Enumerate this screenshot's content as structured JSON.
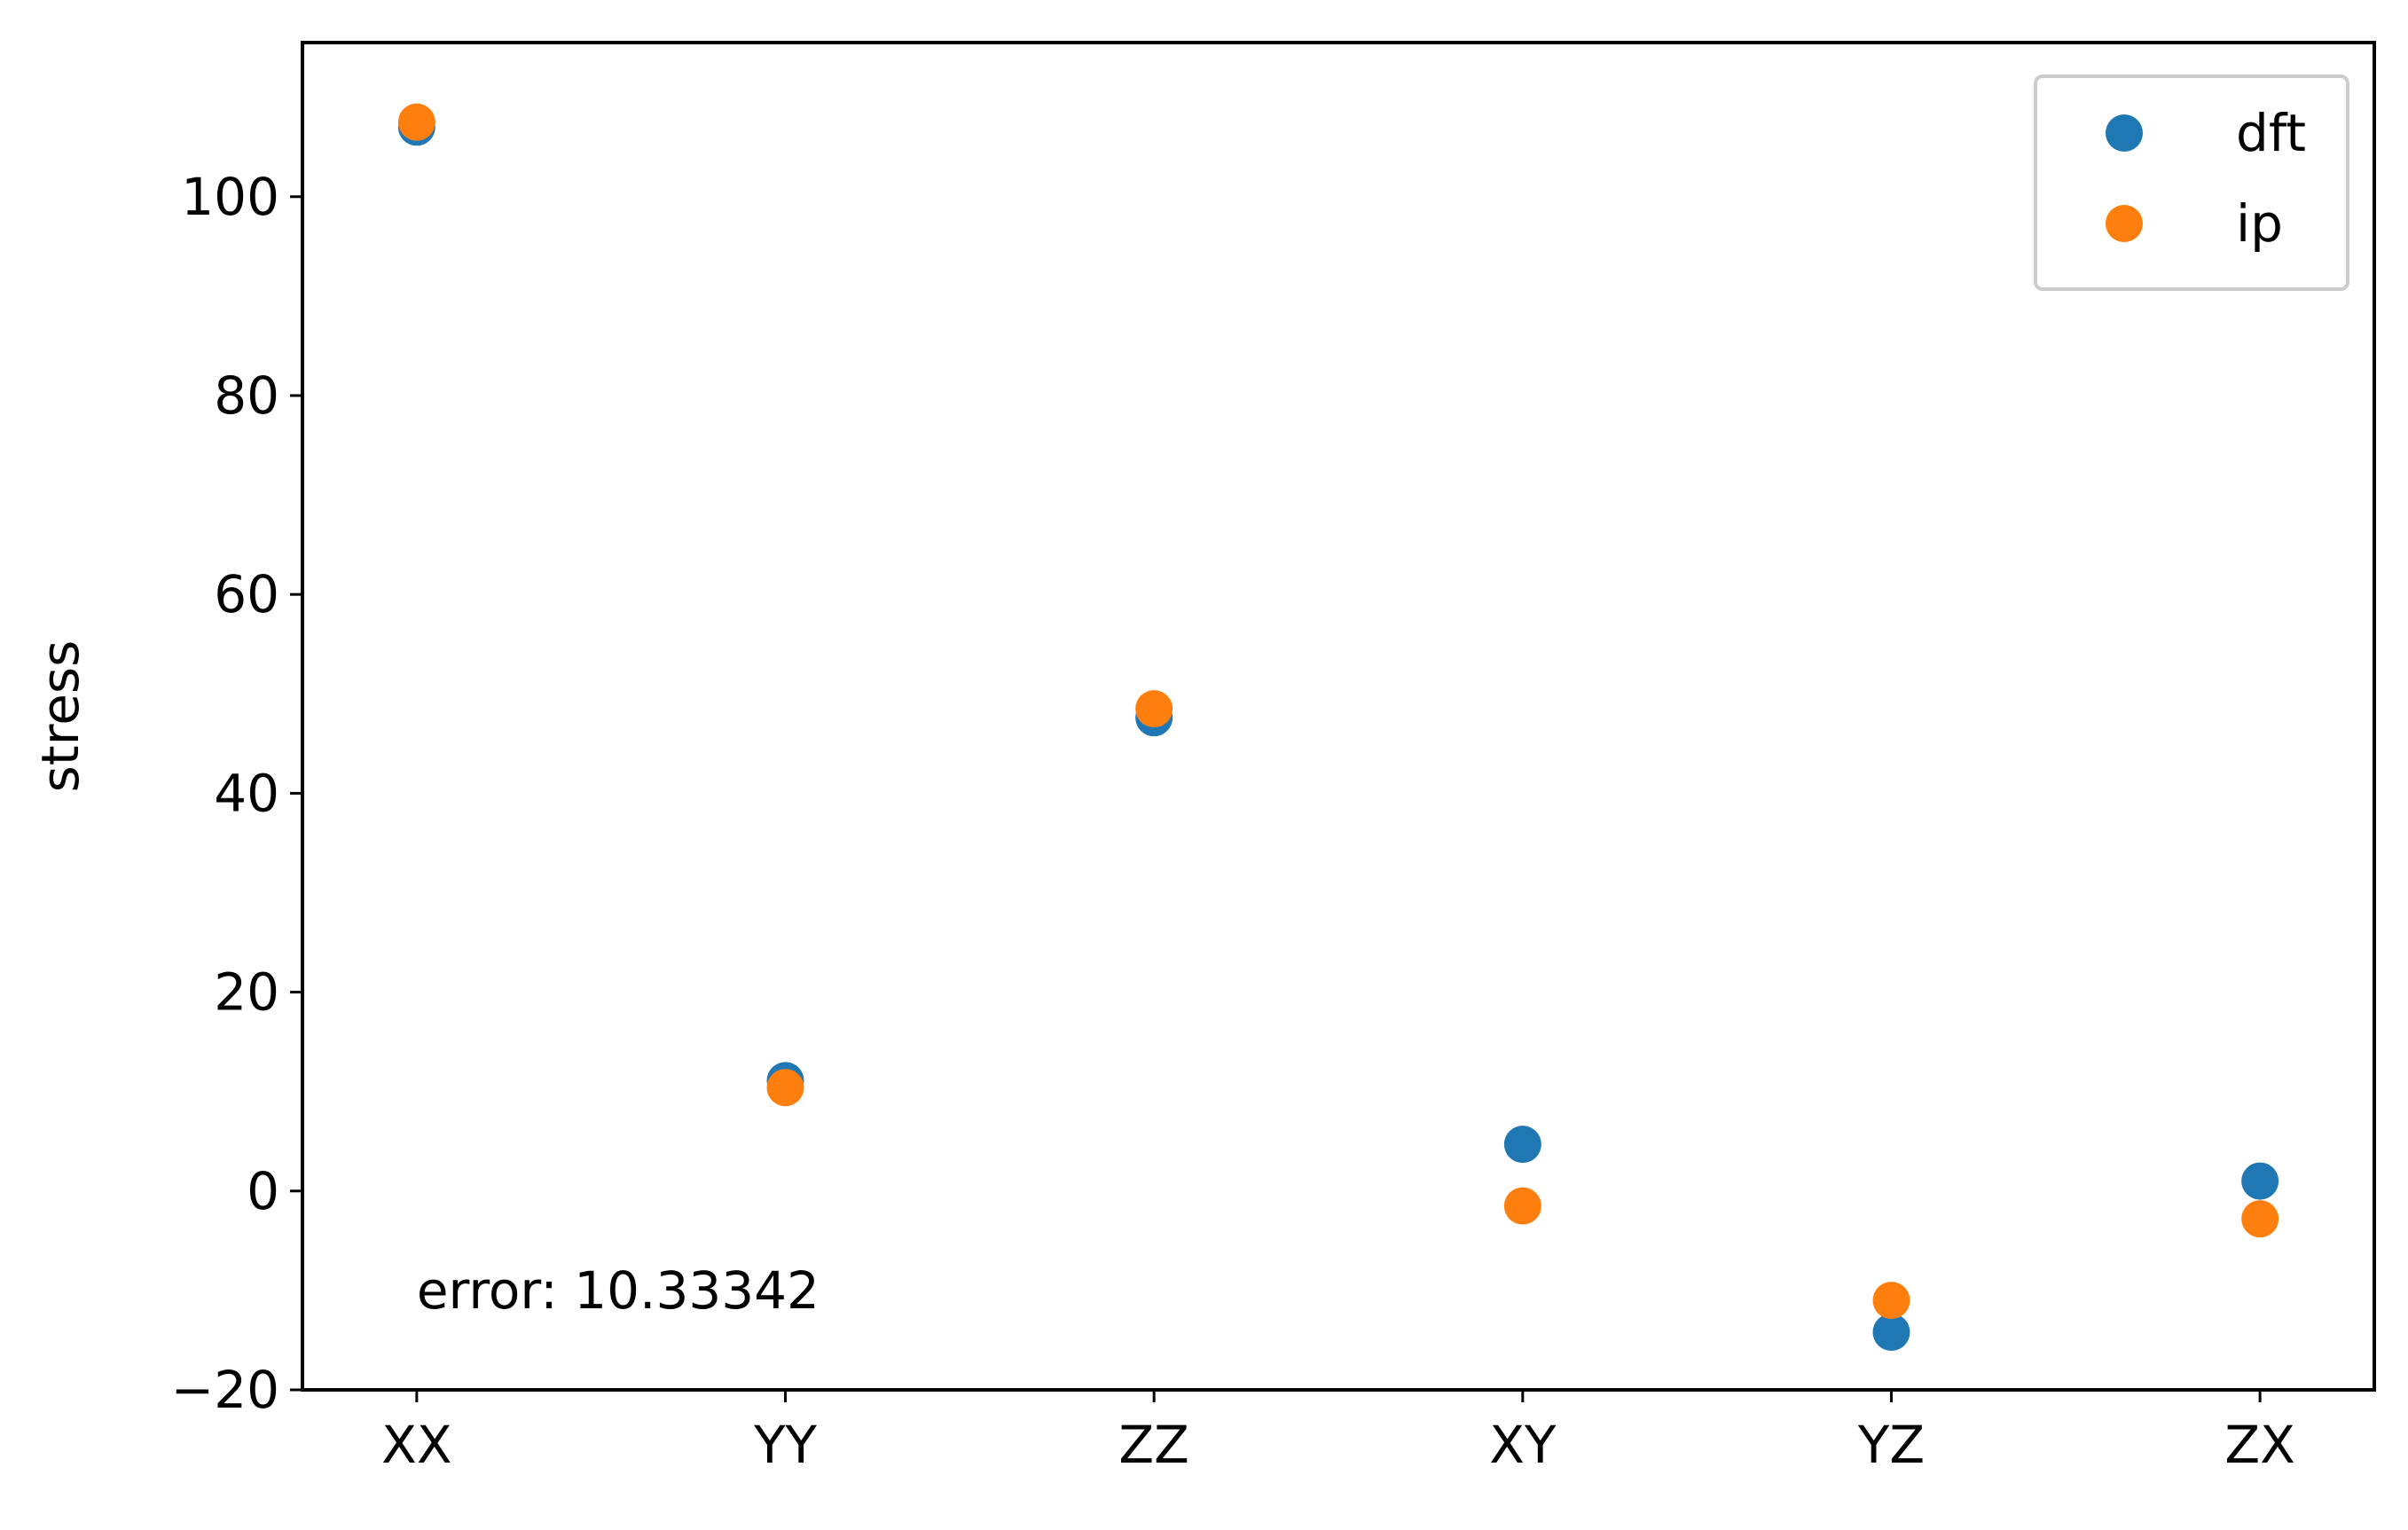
{
  "chart_data": {
    "type": "scatter",
    "categories": [
      "XX",
      "YY",
      "ZZ",
      "XY",
      "YZ",
      "ZX"
    ],
    "series": [
      {
        "name": "dft",
        "color": "#1f77b4",
        "values": [
          107.0,
          11.1,
          47.6,
          4.7,
          -14.2,
          1.0
        ]
      },
      {
        "name": "ip",
        "color": "#ff7f0e",
        "values": [
          107.5,
          10.4,
          48.5,
          -1.5,
          -11.0,
          -2.8
        ]
      }
    ],
    "title": "",
    "xlabel": "",
    "ylabel": "stress",
    "ylim": [
      -20,
      115.5
    ],
    "yticks": [
      -20,
      0,
      20,
      40,
      60,
      80,
      100
    ],
    "ytick_labels": [
      "−20",
      "0",
      "20",
      "40",
      "60",
      "80",
      "100"
    ],
    "grid": false,
    "legend_position": "top-right",
    "annotation": {
      "text": "error: 10.33342",
      "x": "XX",
      "y": -10
    }
  }
}
